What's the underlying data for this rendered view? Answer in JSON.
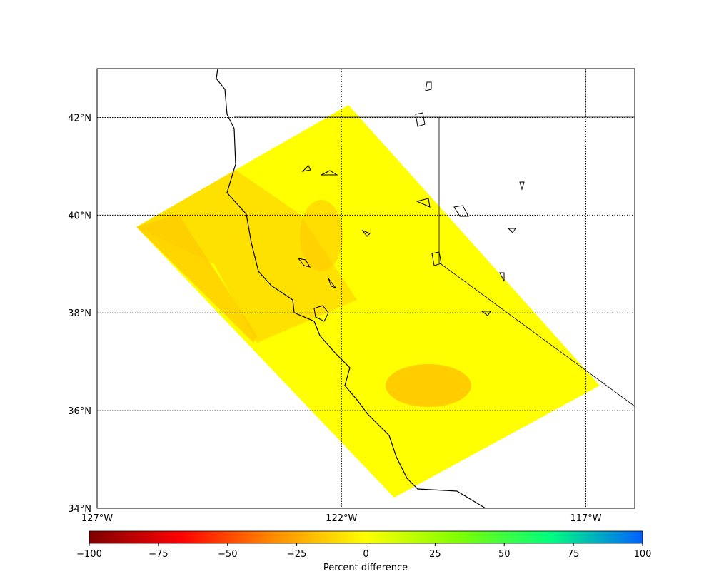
{
  "map": {
    "xlim": [
      -127,
      -116
    ],
    "ylim": [
      34,
      43
    ],
    "xticks": [
      {
        "value": -127,
        "label": "127°W"
      },
      {
        "value": -122,
        "label": "122°W"
      },
      {
        "value": -117,
        "label": "117°W"
      }
    ],
    "yticks": [
      {
        "value": 34,
        "label": "34°N"
      },
      {
        "value": 36,
        "label": "36°N"
      },
      {
        "value": 38,
        "label": "38°N"
      },
      {
        "value": 40,
        "label": "40°N"
      },
      {
        "value": 42,
        "label": "42°N"
      }
    ],
    "grid": true
  },
  "colorbar": {
    "label": "Percent difference",
    "lim": [
      -100,
      100
    ],
    "ticks": [
      {
        "value": -100,
        "label": "−100"
      },
      {
        "value": -75,
        "label": "−75"
      },
      {
        "value": -50,
        "label": "−50"
      },
      {
        "value": -25,
        "label": "−25"
      },
      0,
      25,
      50,
      75,
      100
    ],
    "colors": [
      "#7f0000",
      "#ff0000",
      "#ff8c00",
      "#ffff00",
      "#7fff00",
      "#00ff7f",
      "#0060ff"
    ]
  }
}
